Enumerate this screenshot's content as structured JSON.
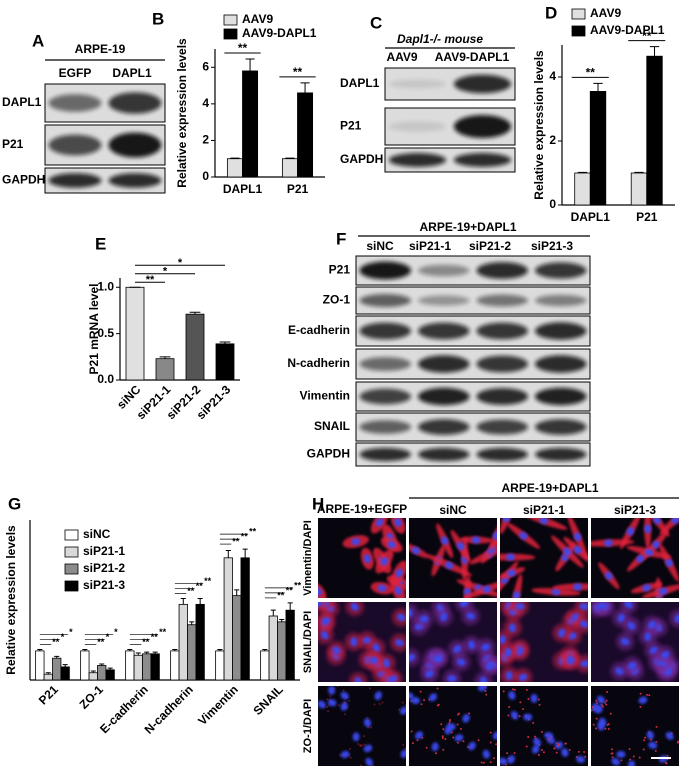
{
  "chart_data": [
    {
      "panel": "B",
      "type": "bar",
      "ylabel": "Relative expression levels",
      "categories": [
        "DAPL1",
        "P21"
      ],
      "series": [
        {
          "name": "AAV9",
          "color": "#e0e0e0",
          "values": [
            1,
            1
          ],
          "errors": [
            0.03,
            0.03
          ]
        },
        {
          "name": "AAV9-DAPL1",
          "color": "#000000",
          "values": [
            5.8,
            4.6
          ],
          "errors": [
            0.65,
            0.55
          ]
        }
      ],
      "significance": [
        "**",
        "**"
      ],
      "ylim": [
        0,
        7
      ],
      "yticks": [
        0,
        2,
        4,
        6
      ]
    },
    {
      "panel": "D",
      "type": "bar",
      "ylabel": "Relative expression levels",
      "categories": [
        "DAPL1",
        "P21"
      ],
      "series": [
        {
          "name": "AAV9",
          "color": "#e0e0e0",
          "values": [
            1,
            1
          ],
          "errors": [
            0.02,
            0.02
          ]
        },
        {
          "name": "AAV9-DAPL1",
          "color": "#000000",
          "values": [
            3.55,
            4.65
          ],
          "errors": [
            0.25,
            0.3
          ]
        }
      ],
      "significance": [
        "**",
        "**"
      ],
      "ylim": [
        0,
        5
      ],
      "yticks": [
        0,
        2,
        4
      ]
    },
    {
      "panel": "E",
      "type": "bar",
      "ylabel": "P21 mRNA level",
      "categories": [
        "siNC",
        "siP21-1",
        "siP21-2",
        "siP21-3"
      ],
      "values": [
        1.0,
        0.23,
        0.71,
        0.39
      ],
      "errors": [
        0,
        0.02,
        0.02,
        0.02
      ],
      "colors": [
        "#e0e0e0",
        "#888888",
        "#555555",
        "#000000"
      ],
      "significance": [
        "**",
        "*",
        "*"
      ],
      "ylim": [
        0,
        1.1
      ],
      "yticks": [
        {
          "value": 0,
          "label": "0.0"
        },
        0.5,
        {
          "value": 1,
          "label": "1.0"
        }
      ]
    },
    {
      "panel": "G",
      "type": "bar",
      "ylabel": "Relative expression levels",
      "categories": [
        "P21",
        "ZO-1",
        "E-cadherin",
        "N-cadherin",
        "Vimentin",
        "SNAIL"
      ],
      "series": [
        {
          "name": "siNC",
          "color": "#ffffff",
          "values": [
            1,
            1,
            1,
            1,
            1,
            1
          ],
          "errors": [
            0.05,
            0.05,
            0.05,
            0.05,
            0.05,
            0.05
          ]
        },
        {
          "name": "siP21-1",
          "color": "#d9d9d9",
          "values": [
            0.2,
            0.25,
            0.85,
            2.6,
            4.2,
            2.2
          ],
          "errors": [
            0.05,
            0.06,
            0.08,
            0.2,
            0.25,
            0.2
          ]
        },
        {
          "name": "siP21-2",
          "color": "#8c8c8c",
          "values": [
            0.75,
            0.5,
            0.9,
            1.9,
            2.9,
            2.0
          ],
          "errors": [
            0.06,
            0.05,
            0.06,
            0.1,
            0.2,
            0.08
          ]
        },
        {
          "name": "siP21-3",
          "color": "#000000",
          "values": [
            0.45,
            0.35,
            0.9,
            2.6,
            4.2,
            2.4
          ],
          "errors": [
            0.08,
            0.06,
            0.06,
            0.2,
            0.3,
            0.25
          ]
        }
      ],
      "significance": [
        [
          "**",
          "*",
          "*"
        ],
        [
          "**",
          "*",
          "*"
        ],
        [
          "**",
          "**",
          "**"
        ],
        [
          "**",
          "**",
          "**"
        ],
        [
          "**",
          "**",
          "**"
        ],
        [
          "**",
          "**",
          "**"
        ]
      ],
      "ylim": [
        0,
        5.5
      ]
    }
  ],
  "blots": [
    {
      "panel": "A",
      "header": "ARPE-19",
      "lanes": [
        "EGFP",
        "DAPL1"
      ],
      "rows": [
        "DAPL1",
        "P21",
        "GAPDH"
      ]
    },
    {
      "panel": "C",
      "header": "Dapl1-/- mouse",
      "lanes": [
        "AAV9",
        "AAV9-DAPL1"
      ],
      "rows": [
        "DAPL1",
        "P21",
        "GAPDH"
      ]
    },
    {
      "panel": "F",
      "header": "ARPE-19+DAPL1",
      "lanes": [
        "siNC",
        "siP21-1",
        "siP21-2",
        "siP21-3"
      ],
      "rows": [
        "P21",
        "ZO-1",
        "E-cadherin",
        "N-cadherin",
        "Vimentin",
        "SNAIL",
        "GAPDH"
      ]
    }
  ],
  "microscopy": {
    "panel": "H",
    "control": "ARPE-19+EGFP",
    "group": "ARPE-19+DAPL1",
    "columns": [
      "siNC",
      "siP21-1",
      "siP21-3"
    ],
    "rows": [
      "Vimentin/DAPI",
      "SNAIL/DAPI",
      "ZO-1/DAPI"
    ]
  }
}
